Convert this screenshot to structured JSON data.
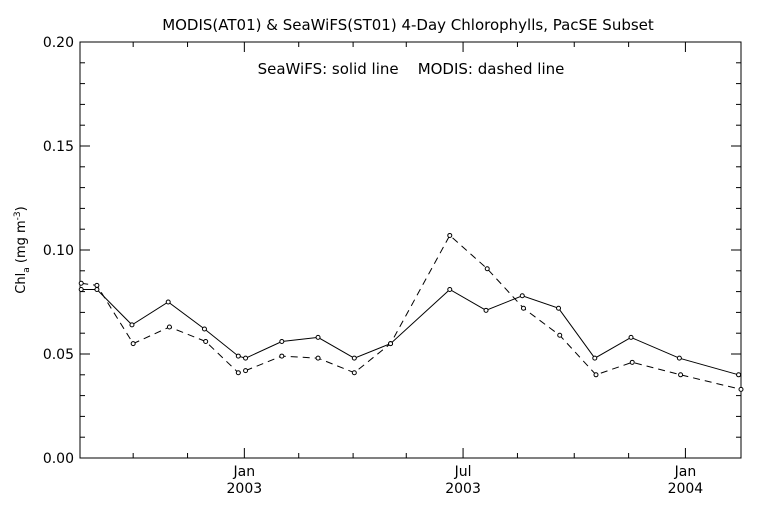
{
  "chart_data": {
    "type": "line",
    "title": "MODIS(AT01) & SeaWiFS(ST01) 4-Day Chlorophylls, PacSE Subset",
    "annotation": "SeaWiFS: solid line    MODIS: dashed line",
    "ylabel_main": "Chl",
    "ylabel_sub": "a",
    "ylabel_units": "(mg m",
    "ylabel_exp": "-3",
    "ylabel_close": ")",
    "ylim": [
      0.0,
      0.2
    ],
    "yticks": [
      "0.00",
      "0.05",
      "0.10",
      "0.15",
      "0.20"
    ],
    "xlim": [
      "2002-08-18",
      "2004-02-16"
    ],
    "xtick_labels": [
      {
        "date": "2003-01-01",
        "month": "Jan",
        "year": "2003"
      },
      {
        "date": "2003-07-01",
        "month": "Jul",
        "year": "2003"
      },
      {
        "date": "2004-01-01",
        "month": "Jan",
        "year": "2004"
      }
    ],
    "x_minor_ticks": [
      "2002-10-01",
      "2002-11-15",
      "2003-02-15",
      "2003-04-01",
      "2003-05-15",
      "2003-08-15",
      "2003-10-01",
      "2003-11-15"
    ],
    "grid": false,
    "series": [
      {
        "name": "SeaWiFS",
        "style": "solid",
        "color": "#000000",
        "points": [
          {
            "x": "2002-08-19",
            "y": 0.081
          },
          {
            "x": "2002-09-01",
            "y": 0.081
          },
          {
            "x": "2002-09-30",
            "y": 0.064
          },
          {
            "x": "2002-10-30",
            "y": 0.075
          },
          {
            "x": "2002-11-29",
            "y": 0.062
          },
          {
            "x": "2002-12-27",
            "y": 0.049
          },
          {
            "x": "2003-01-02",
            "y": 0.048
          },
          {
            "x": "2003-02-01",
            "y": 0.056
          },
          {
            "x": "2003-03-03",
            "y": 0.058
          },
          {
            "x": "2003-04-02",
            "y": 0.048
          },
          {
            "x": "2003-05-02",
            "y": 0.055
          },
          {
            "x": "2003-06-20",
            "y": 0.081
          },
          {
            "x": "2003-07-20",
            "y": 0.071
          },
          {
            "x": "2003-08-19",
            "y": 0.078
          },
          {
            "x": "2003-09-18",
            "y": 0.072
          },
          {
            "x": "2003-10-18",
            "y": 0.048
          },
          {
            "x": "2003-11-17",
            "y": 0.058
          },
          {
            "x": "2003-12-27",
            "y": 0.048
          },
          {
            "x": "2004-02-14",
            "y": 0.04
          }
        ]
      },
      {
        "name": "MODIS",
        "style": "dashed",
        "color": "#000000",
        "points": [
          {
            "x": "2002-08-19",
            "y": 0.084
          },
          {
            "x": "2002-09-01",
            "y": 0.083
          },
          {
            "x": "2002-10-01",
            "y": 0.055
          },
          {
            "x": "2002-10-31",
            "y": 0.063
          },
          {
            "x": "2002-11-30",
            "y": 0.056
          },
          {
            "x": "2002-12-27",
            "y": 0.041
          },
          {
            "x": "2003-01-02",
            "y": 0.042
          },
          {
            "x": "2003-02-01",
            "y": 0.049
          },
          {
            "x": "2003-03-03",
            "y": 0.048
          },
          {
            "x": "2003-04-02",
            "y": 0.041
          },
          {
            "x": "2003-05-02",
            "y": 0.055
          },
          {
            "x": "2003-06-20",
            "y": 0.107
          },
          {
            "x": "2003-07-21",
            "y": 0.091
          },
          {
            "x": "2003-08-20",
            "y": 0.072
          },
          {
            "x": "2003-09-19",
            "y": 0.059
          },
          {
            "x": "2003-10-19",
            "y": 0.04
          },
          {
            "x": "2003-11-18",
            "y": 0.046
          },
          {
            "x": "2003-12-28",
            "y": 0.04
          },
          {
            "x": "2004-02-16",
            "y": 0.033
          }
        ]
      }
    ]
  }
}
